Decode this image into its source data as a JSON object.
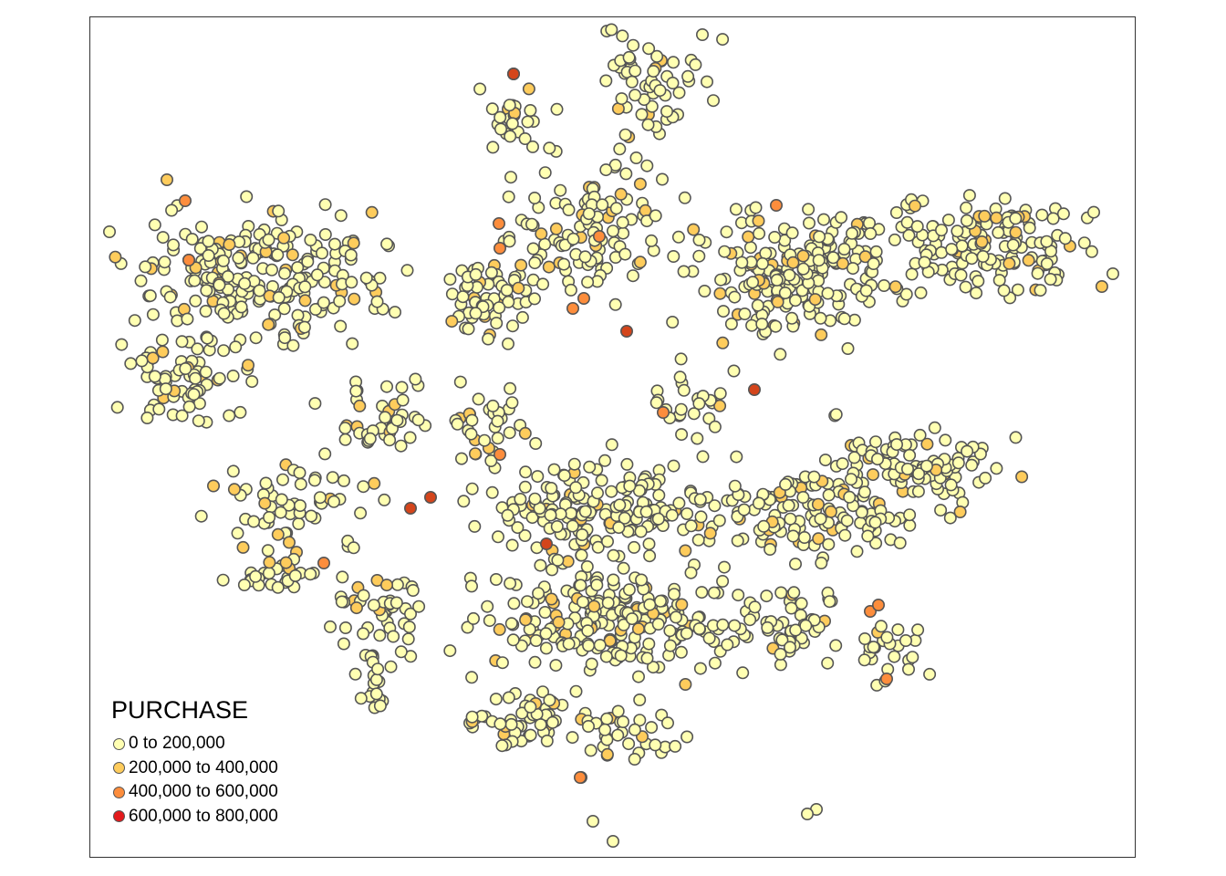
{
  "legend": {
    "title": "PURCHASE",
    "classes": [
      {
        "label": "0 to 200,000",
        "color": "#ffffb2"
      },
      {
        "label": "200,000 to 400,000",
        "color": "#fecc5c"
      },
      {
        "label": "400,000 to 600,000",
        "color": "#fd8d3c"
      },
      {
        "label": "600,000 to 800,000",
        "color": "#e31a1c"
      }
    ]
  },
  "marker_stroke": "#555555",
  "frame_color": "#333333"
}
